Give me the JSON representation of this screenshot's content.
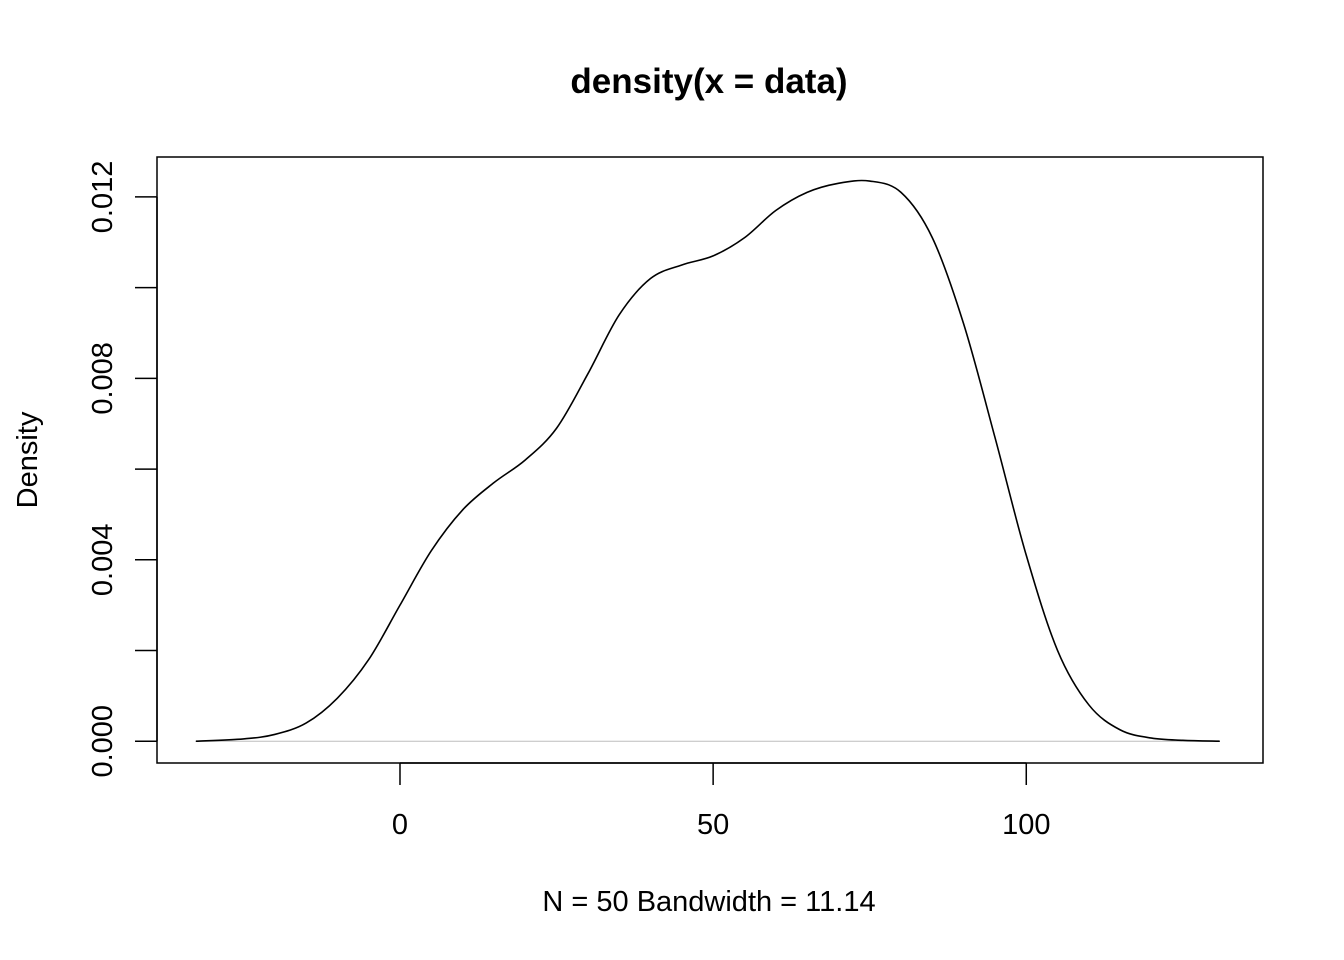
{
  "chart_data": {
    "type": "line",
    "title": "density(x = data)",
    "xlabel": "N = 50   Bandwidth = 11.14",
    "ylabel": "Density",
    "xlim": [
      -38.8,
      137.8
    ],
    "ylim": [
      -0.00048,
      0.01288
    ],
    "x_ticks": [
      0,
      50,
      100
    ],
    "x_tick_labels": [
      "0",
      "50",
      "100"
    ],
    "y_ticks": [
      0,
      0.002,
      0.004,
      0.006,
      0.008,
      0.01,
      0.012
    ],
    "y_tick_labels": [
      "0.000",
      "",
      "0.004",
      "",
      "0.008",
      "",
      "0.012"
    ],
    "grid": false,
    "legend": "none",
    "baseline_color": "#bebebe",
    "line_color": "#000000",
    "series": [
      {
        "x": [
          -32.5,
          -25,
          -20,
          -15,
          -10,
          -5,
          0,
          5,
          10,
          15,
          20,
          25,
          30,
          35,
          40,
          45,
          50,
          55,
          60,
          65,
          70,
          75,
          80,
          85,
          90,
          95,
          100,
          105,
          110,
          115,
          120,
          125,
          130.8
        ],
        "values": [
          0.0,
          5e-05,
          0.00015,
          0.0004,
          0.00095,
          0.0018,
          0.003,
          0.0042,
          0.0051,
          0.0057,
          0.0062,
          0.0069,
          0.0081,
          0.0094,
          0.0102,
          0.0105,
          0.0107,
          0.0111,
          0.0117,
          0.0121,
          0.0123,
          0.01235,
          0.0121,
          0.0111,
          0.0092,
          0.0067,
          0.0041,
          0.002,
          0.0008,
          0.00025,
          7e-05,
          2e-05,
          0.0
        ]
      }
    ]
  }
}
